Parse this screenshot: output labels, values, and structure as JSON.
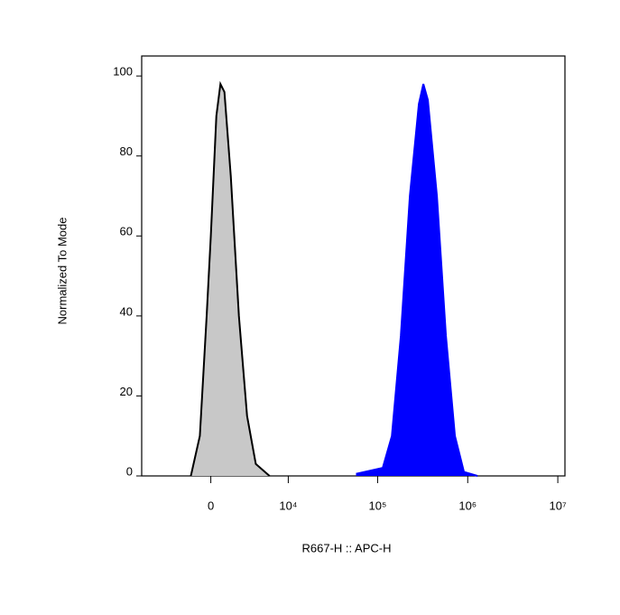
{
  "chart_data": {
    "type": "histogram-overlay",
    "xlabel": "R667-H :: APC-H",
    "ylabel": "Normalized To Mode",
    "x_scale": "biexponential",
    "xlim": [
      -8000,
      12000000
    ],
    "xticks": [
      0,
      {
        "value": 10000,
        "label": "10⁴"
      },
      {
        "value": 100000,
        "label": "10⁵"
      },
      {
        "value": 1000000,
        "label": "10⁶"
      },
      {
        "value": 10000000,
        "label": "10⁷"
      }
    ],
    "ylim": [
      0,
      105
    ],
    "yticks": [
      0,
      20,
      40,
      60,
      80,
      100
    ],
    "series": [
      {
        "color": "#c8c8c8",
        "stroke": "#000000",
        "x": [
          -1500,
          -800,
          -300,
          0,
          400,
          700,
          1000,
          1500,
          2200,
          3000,
          4000,
          6000
        ],
        "values": [
          0,
          10,
          40,
          60,
          90,
          98,
          96,
          75,
          40,
          15,
          3,
          0
        ]
      },
      {
        "color": "#0000ff",
        "stroke": "#0000ff",
        "x": [
          57600,
          114000,
          144000,
          181000,
          228000,
          287000,
          322000,
          361000,
          455000,
          573000,
          721000,
          908000,
          1282000
        ],
        "values": [
          0.5,
          2,
          10,
          35,
          70,
          93,
          98,
          94,
          70,
          35,
          10,
          1,
          0
        ]
      }
    ]
  }
}
